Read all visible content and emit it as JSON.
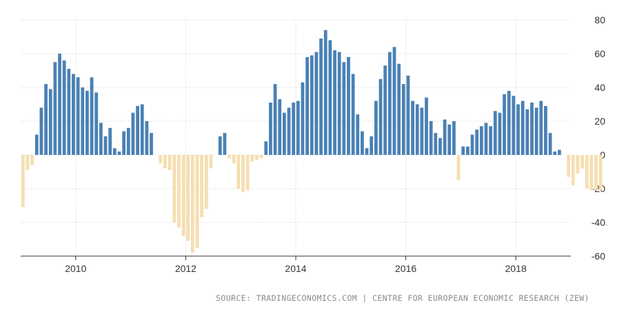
{
  "source": "SOURCE: TRADINGECONOMICS.COM | CENTRE FOR EUROPEAN ECONOMIC RESEARCH (ZEW)",
  "colors": {
    "positive": "#4a81b5",
    "negative": "#f5deb0",
    "grid": "#cfcfcf",
    "axis": "#333333"
  },
  "chart_data": {
    "type": "bar",
    "title": "",
    "xlabel": "",
    "ylabel": "",
    "ylim": [
      -60,
      80
    ],
    "y_ticks": [
      -60,
      -40,
      -20,
      0,
      20,
      40,
      60,
      80
    ],
    "x_ticks": [
      "2010",
      "2012",
      "2014",
      "2016",
      "2018"
    ],
    "grid": true,
    "y_axis_side": "right",
    "x_start": "2009-01",
    "x_end": "2019-01",
    "values": [
      -31,
      -9,
      -6,
      12,
      28,
      42,
      39,
      55,
      60,
      56,
      51,
      48,
      46,
      40,
      38,
      46,
      37,
      19,
      11,
      16,
      4,
      2,
      14,
      16,
      25,
      29,
      30,
      20,
      13,
      0,
      -5,
      -8,
      -9,
      -40,
      -43,
      -48,
      -51,
      -58,
      -55,
      -37,
      -32,
      -8,
      0,
      11,
      13,
      -2,
      -5,
      -20,
      -22,
      -21,
      -4,
      -3,
      -2,
      8,
      31,
      42,
      33,
      25,
      28,
      31,
      32,
      43,
      58,
      59,
      61,
      69,
      74,
      68,
      62,
      61,
      55,
      58,
      48,
      24,
      14,
      4,
      11,
      32,
      45,
      53,
      61,
      64,
      54,
      42,
      47,
      32,
      30,
      28,
      34,
      20,
      13,
      10,
      21,
      18,
      20,
      -15,
      5,
      5,
      12,
      15,
      17,
      19,
      17,
      26,
      25,
      36,
      38,
      35,
      30,
      32,
      27,
      31,
      28,
      32,
      29,
      13,
      2,
      3,
      0,
      -13,
      -18,
      -11,
      -8,
      -20,
      -21,
      -21,
      -21
    ]
  }
}
